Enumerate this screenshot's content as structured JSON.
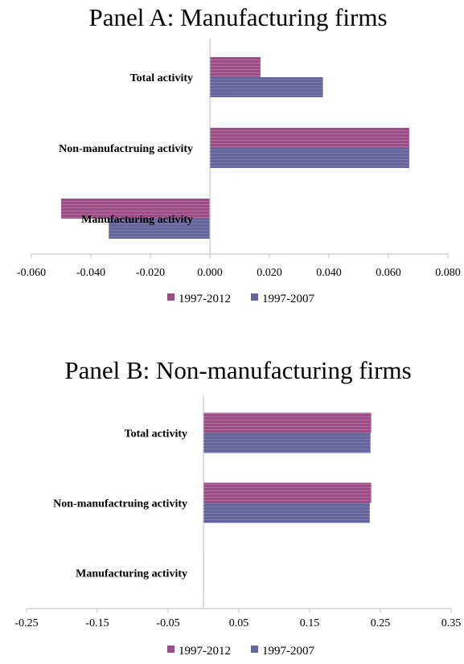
{
  "chart_data": [
    {
      "type": "bar",
      "orientation": "horizontal",
      "title": "Panel A: Manufacturing firms",
      "categories": [
        "Total activity",
        "Non-manufactruing activity",
        "Manufacturing activity"
      ],
      "series": [
        {
          "name": "1997-2012",
          "values": [
            0.017,
            0.067,
            -0.05
          ],
          "color": "#9c4f87"
        },
        {
          "name": "1997-2007",
          "values": [
            0.038,
            0.067,
            -0.034
          ],
          "color": "#66669c"
        }
      ],
      "xlim": [
        -0.06,
        0.08
      ],
      "xticks": [
        -0.06,
        -0.04,
        -0.02,
        0.0,
        0.02,
        0.04,
        0.06,
        0.08
      ],
      "xtick_labels": [
        "-0.060",
        "-0.040",
        "-0.020",
        "0.000",
        "0.020",
        "0.040",
        "0.060",
        "0.080"
      ],
      "legend_position": "bottom",
      "grid": false
    },
    {
      "type": "bar",
      "orientation": "horizontal",
      "title": "Panel B: Non-manufacturing firms",
      "categories": [
        "Total activity",
        "Non-manufactruing activity",
        "Manufacturing activity"
      ],
      "series": [
        {
          "name": "1997-2012",
          "values": [
            0.237,
            0.237,
            0.0
          ],
          "color": "#9c4f87"
        },
        {
          "name": "1997-2007",
          "values": [
            0.236,
            0.235,
            0.0
          ],
          "color": "#66669c"
        }
      ],
      "xlim": [
        -0.25,
        0.35
      ],
      "xticks": [
        -0.25,
        -0.15,
        -0.05,
        0.05,
        0.15,
        0.25,
        0.35
      ],
      "xtick_labels": [
        "-0.25",
        "-0.15",
        "-0.05",
        "0.05",
        "0.15",
        "0.25",
        "0.35"
      ],
      "legend_position": "bottom",
      "grid": false
    }
  ]
}
